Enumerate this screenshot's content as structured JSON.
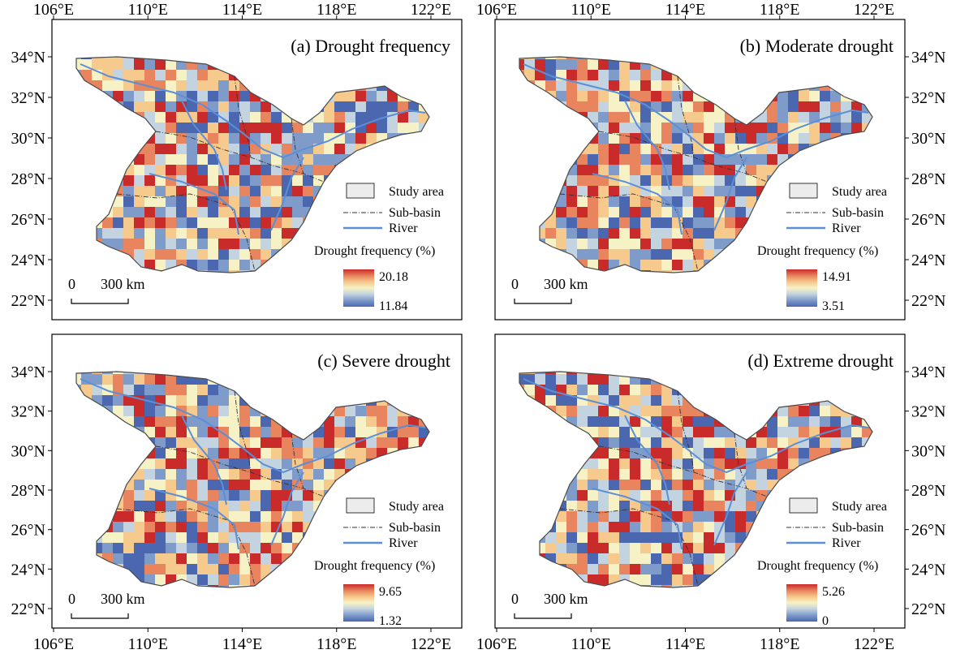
{
  "legend": {
    "study_area": "Study area",
    "sub_basin": "Sub-basin",
    "river": "River",
    "colorbar_title": "Drought frequency (%)"
  },
  "scalebar": {
    "zero": "0",
    "distance": "300 km"
  },
  "colors": {
    "colormap": [
      "#4a67b0",
      "#7e9bca",
      "#c3d3e0",
      "#f6f2c6",
      "#f6c98c",
      "#e8845e",
      "#c92b2b"
    ],
    "river": "#5b8fd6",
    "study_area_fill": "#ececec",
    "boundary": "#4a4a4a"
  },
  "panels": [
    {
      "title": "(a) Drought frequency",
      "x_ticks": [
        "106°E",
        "110°E",
        "114°E",
        "118°E",
        "122°E"
      ],
      "y_ticks": [
        "34°N",
        "32°N",
        "30°N",
        "28°N",
        "26°N",
        "24°N",
        "22°N"
      ],
      "x_tick_side": "top",
      "y_tick_side": "left",
      "colorbar_max": "20.18",
      "colorbar_min": "11.84"
    },
    {
      "title": "(b) Moderate drought",
      "x_ticks": [
        "106°E",
        "110°E",
        "114°E",
        "118°E",
        "122°E"
      ],
      "y_ticks": [
        "34°N",
        "32°N",
        "30°N",
        "28°N",
        "26°N",
        "24°N",
        "22°N"
      ],
      "x_tick_side": "top",
      "y_tick_side": "right",
      "colorbar_max": "14.91",
      "colorbar_min": "3.51"
    },
    {
      "title": "(c) Severe drought",
      "x_ticks": [
        "106°E",
        "110°E",
        "114°E",
        "118°E",
        "122°E"
      ],
      "y_ticks": [
        "34°N",
        "32°N",
        "30°N",
        "28°N",
        "26°N",
        "24°N",
        "22°N"
      ],
      "x_tick_side": "bottom",
      "y_tick_side": "left",
      "colorbar_max": "9.65",
      "colorbar_min": "1.32"
    },
    {
      "title": "(d) Extreme drought",
      "x_ticks": [
        "106°E",
        "110°E",
        "114°E",
        "118°E",
        "122°E"
      ],
      "y_ticks": [
        "34°N",
        "32°N",
        "30°N",
        "28°N",
        "26°N",
        "24°N",
        "22°N"
      ],
      "x_tick_side": "bottom",
      "y_tick_side": "right",
      "colorbar_max": "5.26",
      "colorbar_min": "0"
    }
  ]
}
